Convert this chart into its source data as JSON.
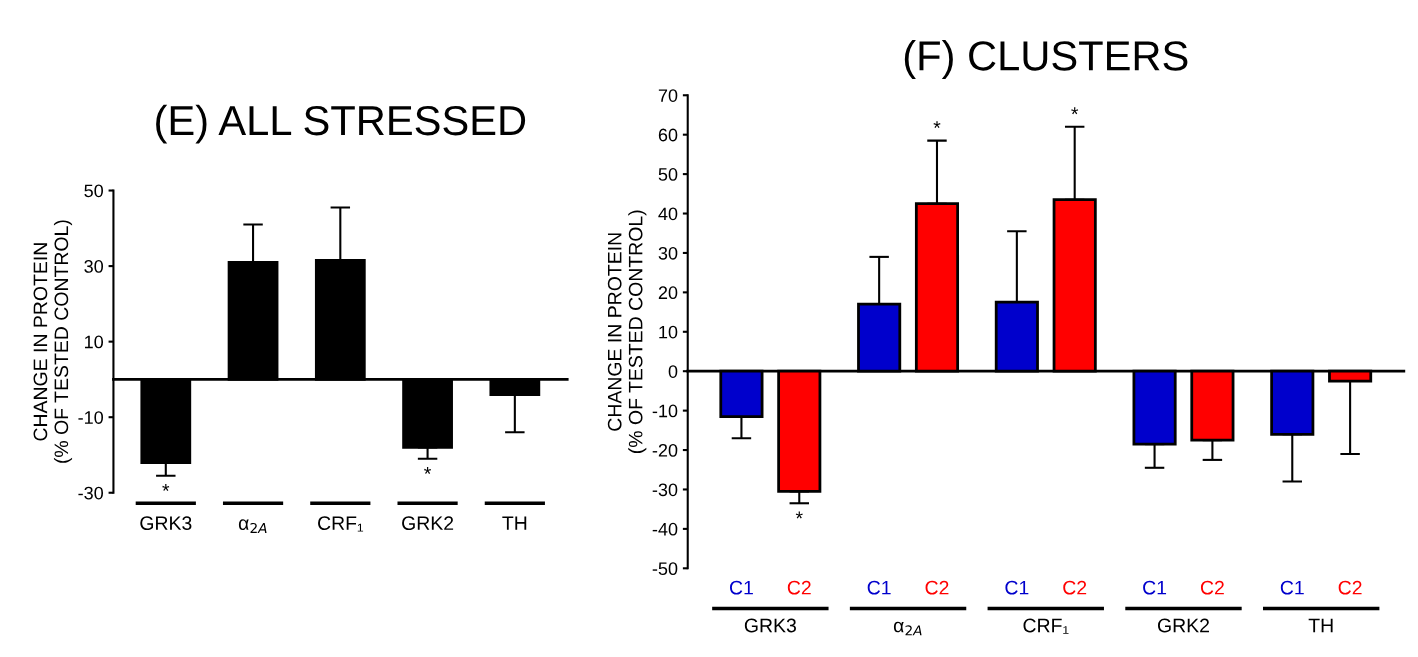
{
  "chart_data": [
    {
      "type": "bar",
      "title": "(E) ALL STRESSED",
      "ylabel": "CHANGE IN PROTEIN\n(% OF TESTED CONTROL)",
      "categories": [
        "GRK3",
        "α$_{2A}$",
        "CRF₁",
        "GRK2",
        "TH"
      ],
      "series": [
        {
          "color": "#000000",
          "values": [
            -22,
            31,
            31.5,
            -18,
            -4
          ],
          "errors": [
            3.5,
            10,
            14,
            3,
            10
          ]
        }
      ],
      "ylim": [
        -30,
        50
      ],
      "yticks": [
        -30,
        -10,
        10,
        30,
        50
      ],
      "annotations": [
        {
          "text": "*",
          "x": "GRK3",
          "y": -25.5
        },
        {
          "text": "*",
          "x": "GRK2",
          "y": -21
        }
      ]
    },
    {
      "type": "bar",
      "title": "(F) CLUSTERS",
      "ylabel": "CHANGE IN PROTEIN\n(% OF TESTED CONTROL)",
      "categories": [
        "GRK3",
        "α$_{2A}$",
        "CRF₁",
        "GRK2",
        "TH"
      ],
      "series": [
        {
          "name": "C1",
          "color": "#0000cc",
          "values": [
            -11.5,
            17,
            17.5,
            -18.5,
            -16
          ],
          "errors": [
            5.5,
            12,
            18,
            6,
            12
          ]
        },
        {
          "name": "C2",
          "color": "#ff0000",
          "values": [
            -30.5,
            42.5,
            43.5,
            -17.5,
            -2.5
          ],
          "errors": [
            3,
            16,
            18.5,
            5,
            18.5
          ]
        }
      ],
      "ylim": [
        -50,
        70
      ],
      "yticks": [
        -50,
        -40,
        -30,
        -20,
        -10,
        0,
        10,
        20,
        30,
        40,
        50,
        60,
        70
      ],
      "annotations": [
        {
          "text": "*",
          "y": -33.5
        },
        {
          "text": "*",
          "y": 58.5
        },
        {
          "text": "*",
          "y": 62
        }
      ]
    }
  ]
}
